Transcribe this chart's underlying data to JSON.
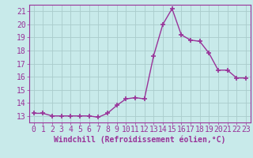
{
  "x": [
    0,
    1,
    2,
    3,
    4,
    5,
    6,
    7,
    8,
    9,
    10,
    11,
    12,
    13,
    14,
    15,
    16,
    17,
    18,
    19,
    20,
    21,
    22,
    23
  ],
  "y": [
    13.2,
    13.2,
    13.0,
    13.0,
    13.0,
    13.0,
    13.0,
    12.9,
    13.2,
    13.8,
    14.3,
    14.4,
    14.3,
    17.6,
    20.0,
    21.2,
    19.2,
    18.8,
    18.7,
    17.8,
    16.5,
    16.5,
    15.9,
    15.9
  ],
  "color": "#993399",
  "bg_color": "#c8eaea",
  "grid_color": "#aacccc",
  "xlabel": "Windchill (Refroidissement éolien,°C)",
  "ylim_min": 12.5,
  "ylim_max": 21.5,
  "xlim_min": -0.5,
  "xlim_max": 23.5,
  "yticks": [
    13,
    14,
    15,
    16,
    17,
    18,
    19,
    20,
    21
  ],
  "xticks": [
    0,
    1,
    2,
    3,
    4,
    5,
    6,
    7,
    8,
    9,
    10,
    11,
    12,
    13,
    14,
    15,
    16,
    17,
    18,
    19,
    20,
    21,
    22,
    23
  ],
  "marker": "+",
  "markersize": 4,
  "linewidth": 1.0,
  "tick_fontsize": 7,
  "xlabel_fontsize": 7
}
